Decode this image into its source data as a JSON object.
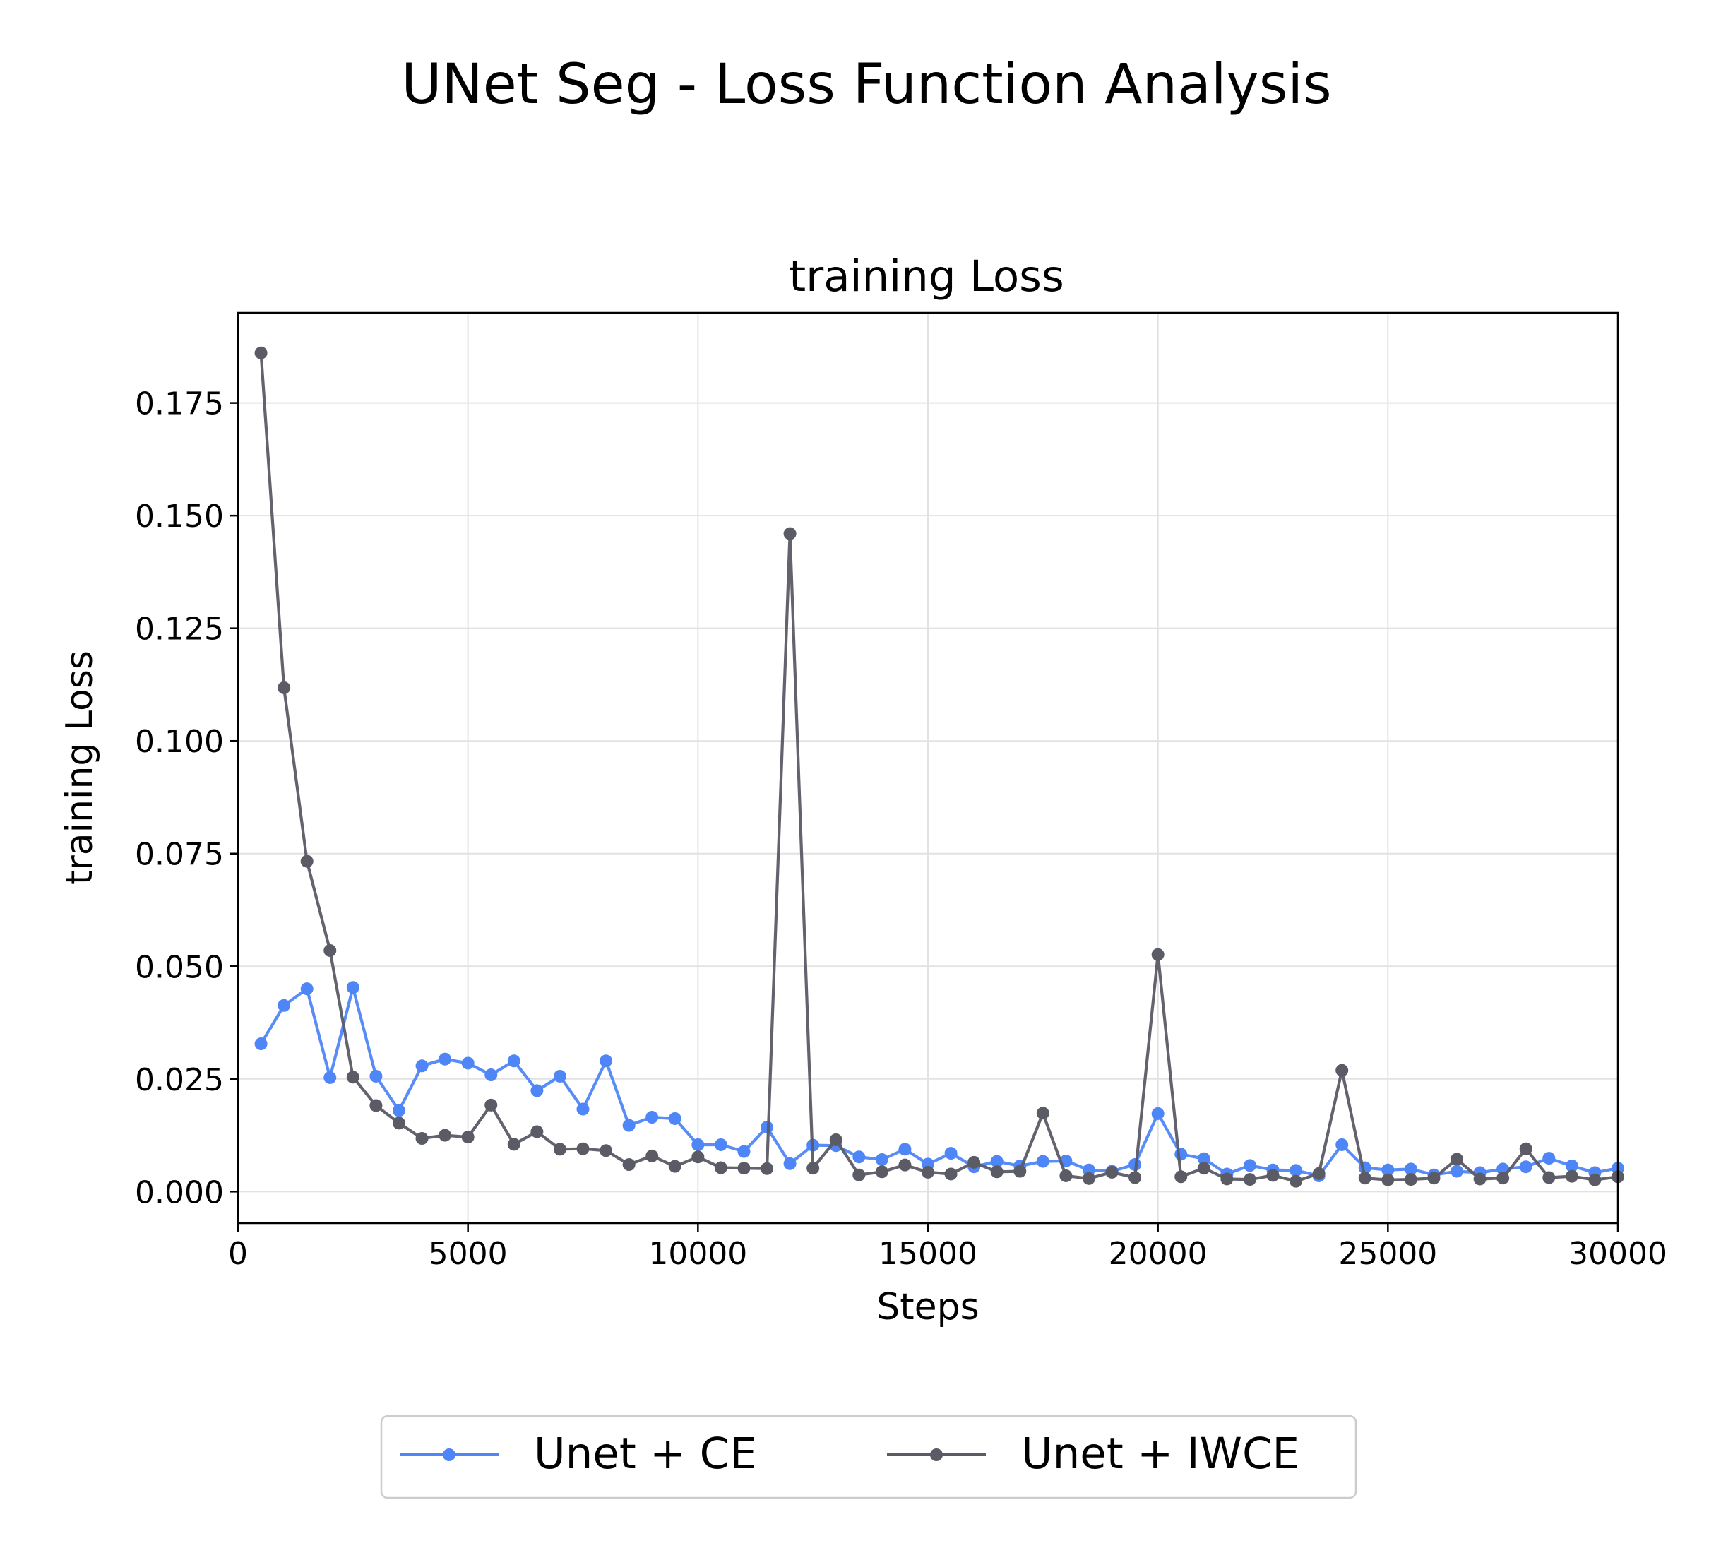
{
  "figure": {
    "suptitle": "UNet Seg - Loss Function Analysis"
  },
  "chart_data": {
    "type": "line",
    "title": "training Loss",
    "xlabel": "Steps",
    "ylabel": "training Loss",
    "xlim": [
      0,
      30000
    ],
    "ylim": [
      -0.007,
      0.195
    ],
    "xticks": [
      0,
      5000,
      10000,
      15000,
      20000,
      25000,
      30000
    ],
    "xtick_labels": [
      "0",
      "5000",
      "10000",
      "15000",
      "20000",
      "25000",
      "30000"
    ],
    "yticks": [
      0.0,
      0.025,
      0.05,
      0.075,
      0.1,
      0.125,
      0.15,
      0.175
    ],
    "ytick_labels": [
      "0.000",
      "0.025",
      "0.050",
      "0.075",
      "0.100",
      "0.125",
      "0.150",
      "0.175"
    ],
    "grid": true,
    "legend_position": "bottom-center",
    "x": [
      500,
      1000,
      1500,
      2000,
      2500,
      3000,
      3500,
      4000,
      4500,
      5000,
      5500,
      6000,
      6500,
      7000,
      7500,
      8000,
      8500,
      9000,
      9500,
      10000,
      10500,
      11000,
      11500,
      12000,
      12500,
      13000,
      13500,
      14000,
      14500,
      15000,
      15500,
      16000,
      16500,
      17000,
      17500,
      18000,
      18500,
      19000,
      19500,
      20000,
      20500,
      21000,
      21500,
      22000,
      22500,
      23000,
      23500,
      24000,
      24500,
      25000,
      25500,
      26000,
      26500,
      27000,
      27500,
      28000,
      28500,
      29000,
      29500,
      30000
    ],
    "series": [
      {
        "name": "Unet + CE",
        "color": "#4f86f7",
        "values": [
          0.0328,
          0.0413,
          0.045,
          0.0253,
          0.0453,
          0.0256,
          0.018,
          0.0279,
          0.0294,
          0.0285,
          0.0259,
          0.029,
          0.0224,
          0.0256,
          0.0183,
          0.029,
          0.0147,
          0.0165,
          0.0162,
          0.0104,
          0.0104,
          0.0089,
          0.0143,
          0.0062,
          0.0103,
          0.0102,
          0.0077,
          0.0071,
          0.0094,
          0.0061,
          0.0085,
          0.0055,
          0.0067,
          0.0057,
          0.0067,
          0.0068,
          0.0048,
          0.0045,
          0.006,
          0.0173,
          0.0083,
          0.0073,
          0.0039,
          0.0058,
          0.0048,
          0.0047,
          0.0035,
          0.0104,
          0.0053,
          0.0048,
          0.005,
          0.0037,
          0.0045,
          0.0042,
          0.005,
          0.0055,
          0.0074,
          0.0057,
          0.0042,
          0.0052
        ]
      },
      {
        "name": "Unet + IWCE",
        "color": "#5b5b66",
        "values": [
          0.1861,
          0.1118,
          0.0733,
          0.0535,
          0.0254,
          0.0191,
          0.0152,
          0.0118,
          0.0125,
          0.0121,
          0.0192,
          0.0105,
          0.0133,
          0.0094,
          0.0095,
          0.0091,
          0.006,
          0.0079,
          0.0056,
          0.0077,
          0.0053,
          0.0052,
          0.0051,
          0.146,
          0.0052,
          0.0115,
          0.0037,
          0.0044,
          0.0059,
          0.0043,
          0.0039,
          0.0065,
          0.0044,
          0.0045,
          0.0174,
          0.0035,
          0.0029,
          0.0043,
          0.0031,
          0.0526,
          0.0033,
          0.0052,
          0.0028,
          0.0027,
          0.0036,
          0.0023,
          0.004,
          0.0269,
          0.003,
          0.0026,
          0.0027,
          0.003,
          0.0072,
          0.0028,
          0.003,
          0.0095,
          0.0031,
          0.0034,
          0.0026,
          0.0033
        ]
      }
    ]
  }
}
